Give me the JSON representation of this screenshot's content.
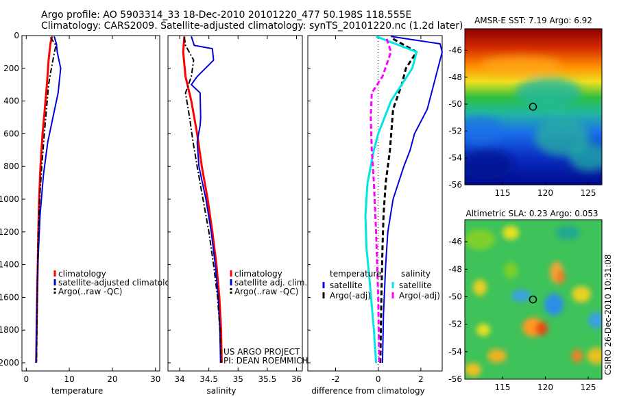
{
  "header": {
    "line1": "Argo profile: AO 5903314_33 18-Dec-2010 20101220_477 50.198S 118.555E",
    "line2": "Climatology: CARS2009. Satellite-adjusted climatology: synTS_20101220.nc (1.2d later)"
  },
  "footer": {
    "project": "US ARGO PROJECT",
    "pi": "PI: DEAN ROEMMICH"
  },
  "watermark": "CSIRO 26-Dec-2010 10:31:08",
  "chart_data": [
    {
      "type": "line",
      "xlabel": "temperature",
      "xlim": [
        -1,
        31
      ],
      "ylim": [
        0,
        2050
      ],
      "y_reversed": true,
      "xticks": [
        0,
        10,
        20,
        30
      ],
      "yticks": [
        0,
        200,
        400,
        600,
        800,
        1000,
        1200,
        1400,
        1600,
        1800,
        2000
      ],
      "legend": [
        "climatology",
        "satellite-adjusted climatology",
        "Argo(..raw -QC)"
      ],
      "series": [
        {
          "name": "climatology",
          "color": "#ff0000",
          "style": "solid",
          "width": 3,
          "points": [
            [
              6,
              5
            ],
            [
              5.6,
              50
            ],
            [
              5.2,
              150
            ],
            [
              4.8,
              300
            ],
            [
              4.3,
              450
            ],
            [
              3.8,
              600
            ],
            [
              3.3,
              800
            ],
            [
              3,
              1000
            ],
            [
              2.8,
              1200
            ],
            [
              2.6,
              1500
            ],
            [
              2.4,
              1800
            ],
            [
              2.3,
              2000
            ]
          ]
        },
        {
          "name": "satellite-adjusted climatology",
          "color": "#0000dd",
          "style": "solid",
          "width": 2,
          "points": [
            [
              6.5,
              5
            ],
            [
              7,
              50
            ],
            [
              7.2,
              100
            ],
            [
              8,
              200
            ],
            [
              7.4,
              350
            ],
            [
              6.2,
              500
            ],
            [
              5,
              650
            ],
            [
              4,
              850
            ],
            [
              3.2,
              1100
            ],
            [
              2.7,
              1400
            ],
            [
              2.4,
              1700
            ],
            [
              2.3,
              2000
            ]
          ]
        },
        {
          "name": "Argo(..raw -QC)",
          "color": "#000000",
          "style": "dashdot",
          "width": 2,
          "points": [
            [
              5.6,
              10
            ],
            [
              6.9,
              60
            ],
            [
              6.4,
              120
            ],
            [
              5.7,
              220
            ],
            [
              5.2,
              300
            ],
            [
              4.7,
              450
            ],
            [
              4.2,
              600
            ],
            [
              3.6,
              800
            ],
            [
              3.1,
              1000
            ],
            [
              2.8,
              1200
            ],
            [
              2.6,
              1500
            ],
            [
              2.5,
              1700
            ],
            [
              2.4,
              2000
            ]
          ]
        }
      ]
    },
    {
      "type": "line",
      "xlabel": "salinity",
      "xlim": [
        33.8,
        36.1
      ],
      "ylim": [
        0,
        2050
      ],
      "y_reversed": true,
      "xticks": [
        34,
        34.5,
        35,
        35.5,
        36
      ],
      "yticks": [],
      "legend": [
        "climatology",
        "satellite adj. clim.",
        "Argo(..raw -QC)"
      ],
      "series": [
        {
          "name": "climatology",
          "color": "#ff0000",
          "style": "solid",
          "width": 3,
          "points": [
            [
              34.08,
              5
            ],
            [
              34.06,
              100
            ],
            [
              34.1,
              250
            ],
            [
              34.2,
              400
            ],
            [
              34.3,
              600
            ],
            [
              34.38,
              800
            ],
            [
              34.48,
              1000
            ],
            [
              34.56,
              1200
            ],
            [
              34.63,
              1400
            ],
            [
              34.68,
              1600
            ],
            [
              34.71,
              1800
            ],
            [
              34.72,
              2000
            ]
          ]
        },
        {
          "name": "satellite adj. clim.",
          "color": "#0000dd",
          "style": "solid",
          "width": 2,
          "points": [
            [
              34.2,
              5
            ],
            [
              34.25,
              60
            ],
            [
              34.56,
              80
            ],
            [
              34.58,
              150
            ],
            [
              34.3,
              250
            ],
            [
              34.2,
              300
            ],
            [
              34.35,
              350
            ],
            [
              34.36,
              500
            ],
            [
              34.35,
              550
            ],
            [
              34.3,
              650
            ],
            [
              34.33,
              800
            ],
            [
              34.45,
              1000
            ],
            [
              34.54,
              1200
            ],
            [
              34.61,
              1400
            ],
            [
              34.66,
              1600
            ],
            [
              34.69,
              1800
            ],
            [
              34.7,
              2000
            ]
          ]
        },
        {
          "name": "Argo(..raw -QC)",
          "color": "#000000",
          "style": "dashdot",
          "width": 2,
          "points": [
            [
              34.08,
              10
            ],
            [
              34.1,
              60
            ],
            [
              34.24,
              150
            ],
            [
              34.2,
              250
            ],
            [
              34.1,
              350
            ],
            [
              34.17,
              500
            ],
            [
              34.23,
              650
            ],
            [
              34.3,
              800
            ],
            [
              34.4,
              1000
            ],
            [
              34.5,
              1200
            ],
            [
              34.58,
              1400
            ],
            [
              34.65,
              1600
            ],
            [
              34.69,
              1800
            ],
            [
              34.71,
              2000
            ]
          ]
        }
      ]
    },
    {
      "type": "line",
      "xlabel": "difference from climatology",
      "xlim": [
        -3.3,
        3.0
      ],
      "ylim": [
        0,
        2050
      ],
      "y_reversed": true,
      "xticks": [
        -2,
        0,
        2
      ],
      "yticks": [],
      "legend_groups": [
        {
          "title": "temperature",
          "items": [
            "satellite",
            "Argo(-adj)"
          ]
        },
        {
          "title": "salinity",
          "items": [
            "satellite",
            "Argo(-adj)"
          ]
        }
      ],
      "series": [
        {
          "name": "satellite",
          "group": "temperature",
          "color": "#0000dd",
          "style": "solid",
          "width": 2,
          "points": [
            [
              0.6,
              5
            ],
            [
              2.9,
              50
            ],
            [
              3,
              100
            ],
            [
              2.6,
              300
            ],
            [
              2.3,
              450
            ],
            [
              1.7,
              600
            ],
            [
              1.5,
              700
            ],
            [
              1.2,
              800
            ],
            [
              0.7,
              1000
            ],
            [
              0.45,
              1200
            ],
            [
              0.35,
              1400
            ],
            [
              0.25,
              1700
            ],
            [
              0.2,
              2000
            ]
          ]
        },
        {
          "name": "Argo(-adj)",
          "group": "temperature",
          "color": "#000000",
          "style": "dashed",
          "width": 3,
          "points": [
            [
              0.7,
              20
            ],
            [
              1.8,
              100
            ],
            [
              1.3,
              200
            ],
            [
              1.1,
              300
            ],
            [
              0.7,
              450
            ],
            [
              0.55,
              700
            ],
            [
              0.35,
              900
            ],
            [
              0.25,
              1100
            ],
            [
              0.2,
              1300
            ],
            [
              0.15,
              1600
            ],
            [
              0.1,
              2000
            ]
          ]
        },
        {
          "name": "satellite",
          "group": "salinity",
          "color": "#00e5e5",
          "style": "solid",
          "width": 3,
          "points": [
            [
              -0.1,
              5
            ],
            [
              0.8,
              50
            ],
            [
              1.8,
              100
            ],
            [
              1.6,
              200
            ],
            [
              1.1,
              300
            ],
            [
              0.6,
              400
            ],
            [
              0.3,
              500
            ],
            [
              0,
              600
            ],
            [
              -0.2,
              700
            ],
            [
              -0.5,
              900
            ],
            [
              -0.6,
              1100
            ],
            [
              -0.55,
              1300
            ],
            [
              -0.4,
              1500
            ],
            [
              -0.2,
              1800
            ],
            [
              -0.1,
              2000
            ]
          ]
        },
        {
          "name": "Argo(-adj)",
          "group": "salinity",
          "color": "#ff00ff",
          "style": "dashed",
          "width": 3,
          "points": [
            [
              0.4,
              20
            ],
            [
              0.6,
              100
            ],
            [
              0.2,
              250
            ],
            [
              -0.3,
              350
            ],
            [
              -0.35,
              500
            ],
            [
              -0.3,
              700
            ],
            [
              -0.2,
              900
            ],
            [
              -0.1,
              1200
            ],
            [
              0,
              1600
            ],
            [
              0.05,
              2000
            ]
          ]
        }
      ]
    },
    {
      "type": "heatmap",
      "title": "AMSR-E SST: 7.19 Argo: 6.92",
      "xticks": [
        115,
        120,
        125
      ],
      "yticks": [
        -46,
        -48,
        -50,
        -52,
        -54,
        -56
      ],
      "xlim": [
        110.6,
        126.6
      ],
      "ylim": [
        -56,
        -44.4
      ],
      "marker": {
        "lon": 118.555,
        "lat": -50.198
      }
    },
    {
      "type": "heatmap",
      "title": "Altimetric SLA: 0.23 Argo: 0.053",
      "xticks": [
        115,
        120,
        125
      ],
      "yticks": [
        -46,
        -48,
        -50,
        -52,
        -54,
        -56
      ],
      "xlim": [
        110.6,
        126.6
      ],
      "ylim": [
        -56,
        -44.4
      ],
      "marker": {
        "lon": 118.555,
        "lat": -50.198
      }
    }
  ]
}
